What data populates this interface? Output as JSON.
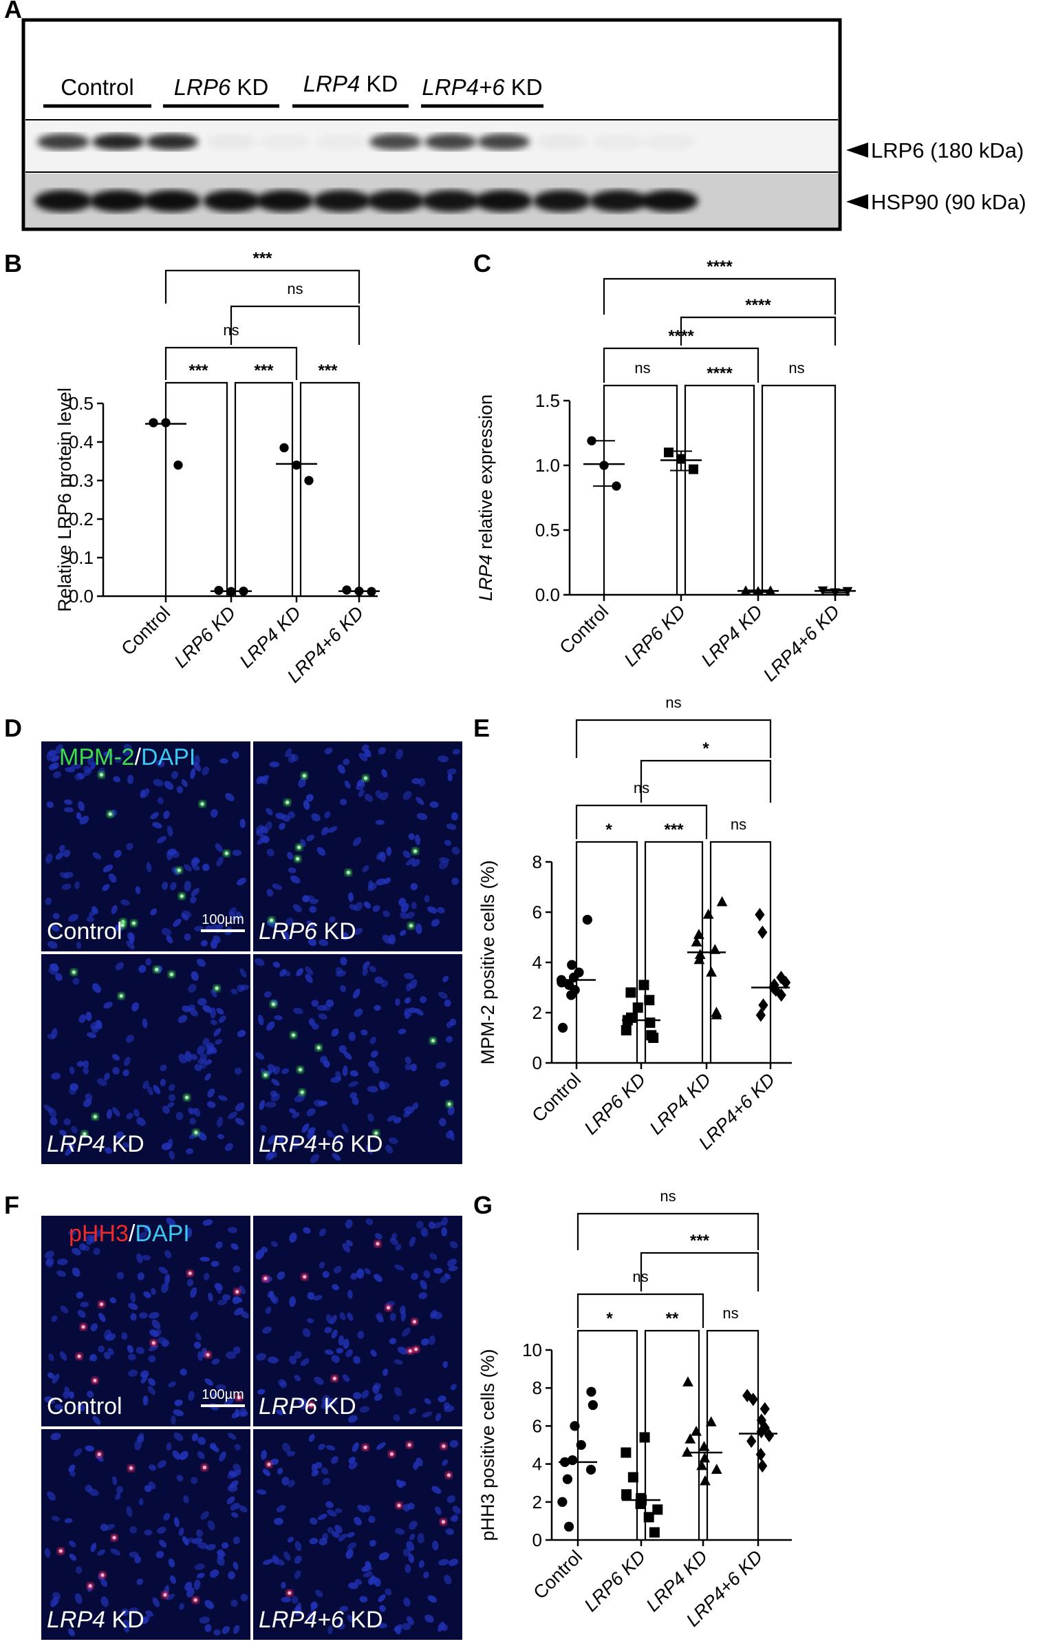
{
  "panels": {
    "A": {
      "letter": "A",
      "groups": [
        {
          "italic": "",
          "rest": "Control"
        },
        {
          "italic": "LRP6",
          "rest": " KD"
        },
        {
          "italic": "LRP4",
          "rest": " KD"
        },
        {
          "italic": "LRP4+6",
          "rest": " KD"
        }
      ],
      "band_labels": [
        "LRP6 (180 kDa)",
        "HSP90 (90 kDa)"
      ],
      "lrp6_band_intensity": [
        0.75,
        0.85,
        0.82,
        0.04,
        0.03,
        0.03,
        0.7,
        0.72,
        0.72,
        0.04,
        0.03,
        0.03
      ],
      "hsp90_band_intensity": [
        0.92,
        0.93,
        0.93,
        0.92,
        0.92,
        0.9,
        0.9,
        0.9,
        0.92,
        0.9,
        0.9,
        0.92
      ]
    },
    "B": {
      "letter": "B"
    },
    "C": {
      "letter": "C"
    },
    "D": {
      "letter": "D",
      "stain_a": "MPM-2",
      "stain_sep": "/",
      "stain_b": "DAPI",
      "scale_bar": "100µm",
      "quadrants": [
        {
          "italic": "",
          "rest": "Control"
        },
        {
          "italic": "LRP6",
          "rest": " KD"
        },
        {
          "italic": "LRP4",
          "rest": " KD"
        },
        {
          "italic": "LRP4+6",
          "rest": " KD"
        }
      ]
    },
    "E": {
      "letter": "E"
    },
    "F": {
      "letter": "F",
      "stain_a": "pHH3",
      "stain_sep": "/",
      "stain_b": "DAPI",
      "scale_bar": "100µm",
      "quadrants": [
        {
          "italic": "",
          "rest": "Control"
        },
        {
          "italic": "LRP6",
          "rest": " KD"
        },
        {
          "italic": "LRP4",
          "rest": " KD"
        },
        {
          "italic": "LRP4+6",
          "rest": " KD"
        }
      ]
    },
    "G": {
      "letter": "G"
    }
  },
  "chart_data": [
    {
      "id": "B",
      "type": "scatter",
      "ylabel": "Relative LRP6 protein level",
      "ylabel_italic_prefix": "",
      "ylim": [
        0,
        0.5
      ],
      "yticks": [
        "0.0",
        "0.1",
        "0.2",
        "0.3",
        "0.4",
        "0.5"
      ],
      "categories": [
        "Control",
        "LRP6 KD",
        "LRP4 KD",
        "LRP4+6 KD"
      ],
      "category_italic": [
        false,
        true,
        true,
        true
      ],
      "markers": [
        "circle",
        "circle",
        "circle",
        "circle"
      ],
      "points": [
        [
          0.45,
          0.45,
          0.34
        ],
        [
          0.015,
          0.012,
          0.013
        ],
        [
          0.385,
          0.34,
          0.3
        ],
        [
          0.016,
          0.013,
          0.012
        ]
      ],
      "medians": [
        0.447,
        0.013,
        0.343,
        0.013
      ],
      "error_bars": null,
      "comparisons": [
        {
          "a": 0,
          "b": 1,
          "label": "***",
          "level": 0
        },
        {
          "a": 1,
          "b": 2,
          "label": "***",
          "level": 0
        },
        {
          "a": 2,
          "b": 3,
          "label": "***",
          "level": 0
        },
        {
          "a": 0,
          "b": 2,
          "label": "ns",
          "level": 1
        },
        {
          "a": 1,
          "b": 3,
          "label": "ns",
          "level": 2
        },
        {
          "a": 0,
          "b": 3,
          "label": "***",
          "level": 3
        }
      ]
    },
    {
      "id": "C",
      "type": "scatter",
      "ylabel": " relative expression",
      "ylabel_italic_prefix": "LRP4",
      "ylim": [
        0,
        1.5
      ],
      "yticks": [
        "0.0",
        "0.5",
        "1.0",
        "1.5"
      ],
      "categories": [
        "Control",
        "LRP6 KD",
        "LRP4 KD",
        "LRP4+6 KD"
      ],
      "category_italic": [
        false,
        true,
        true,
        true
      ],
      "markers": [
        "circle",
        "square",
        "triangle",
        "tri-down"
      ],
      "points": [
        [
          1.19,
          1.0,
          0.84
        ],
        [
          1.1,
          1.05,
          0.97
        ],
        [
          0.03,
          0.025,
          0.03
        ],
        [
          0.035,
          0.02,
          0.03
        ]
      ],
      "medians": [
        1.01,
        1.04,
        0.03,
        0.03
      ],
      "error_bars": [
        [
          0.84,
          1.19
        ],
        [
          0.96,
          1.11
        ],
        [
          0.02,
          0.035
        ],
        [
          0.015,
          0.04
        ]
      ],
      "comparisons": [
        {
          "a": 0,
          "b": 1,
          "label": "ns",
          "level": 0
        },
        {
          "a": 1,
          "b": 2,
          "label": "****",
          "level": 0
        },
        {
          "a": 2,
          "b": 3,
          "label": "ns",
          "level": 0
        },
        {
          "a": 0,
          "b": 2,
          "label": "****",
          "level": 1
        },
        {
          "a": 1,
          "b": 3,
          "label": "****",
          "level": 2
        },
        {
          "a": 0,
          "b": 3,
          "label": "****",
          "level": 3
        }
      ]
    },
    {
      "id": "E",
      "type": "scatter",
      "ylabel": "MPM-2 positive cells (%)",
      "ylabel_italic_prefix": "",
      "ylim": [
        0,
        8
      ],
      "yticks": [
        "0",
        "2",
        "4",
        "6",
        "8"
      ],
      "categories": [
        "Control",
        "LRP6 KD",
        "LRP4 KD",
        "LRP4+6 KD"
      ],
      "category_italic": [
        false,
        true,
        true,
        true
      ],
      "markers": [
        "circle",
        "square",
        "triangle",
        "diamond"
      ],
      "points": [
        [
          5.7,
          3.9,
          3.6,
          3.4,
          3.3,
          3.2,
          3.1,
          2.9,
          2.7,
          1.4
        ],
        [
          3.1,
          2.8,
          2.5,
          2.2,
          1.8,
          1.7,
          1.6,
          1.3,
          1.1,
          1.0
        ],
        [
          6.4,
          5.9,
          5.1,
          4.8,
          4.5,
          4.3,
          4.1,
          3.6,
          2.0,
          1.9
        ],
        [
          5.9,
          5.2,
          3.4,
          3.2,
          3.1,
          3.0,
          2.9,
          2.7,
          2.3,
          1.9
        ]
      ],
      "medians": [
        3.3,
        1.7,
        4.4,
        3.0
      ],
      "error_bars": null,
      "comparisons": [
        {
          "a": 0,
          "b": 1,
          "label": "*",
          "level": 0
        },
        {
          "a": 1,
          "b": 2,
          "label": "***",
          "level": 0
        },
        {
          "a": 2,
          "b": 3,
          "label": "ns",
          "level": 0
        },
        {
          "a": 0,
          "b": 2,
          "label": "ns",
          "level": 1
        },
        {
          "a": 1,
          "b": 3,
          "label": "*",
          "level": 2
        },
        {
          "a": 0,
          "b": 3,
          "label": "ns",
          "level": 3
        }
      ]
    },
    {
      "id": "G",
      "type": "scatter",
      "ylabel": "pHH3 positive cells (%)",
      "ylabel_italic_prefix": "",
      "ylim": [
        0,
        10
      ],
      "yticks": [
        "0",
        "2",
        "4",
        "6",
        "8",
        "10"
      ],
      "categories": [
        "Control",
        "LRP6 KD",
        "LRP4 KD",
        "LRP4+6 KD"
      ],
      "category_italic": [
        false,
        true,
        true,
        true
      ],
      "markers": [
        "circle",
        "square",
        "triangle",
        "diamond"
      ],
      "points": [
        [
          7.8,
          7.1,
          6.0,
          5.0,
          4.2,
          4.1,
          3.7,
          3.2,
          2.0,
          0.7
        ],
        [
          5.4,
          4.6,
          3.3,
          2.4,
          2.2,
          2.1,
          1.9,
          1.6,
          1.2,
          0.4
        ],
        [
          8.3,
          6.2,
          5.7,
          5.3,
          4.9,
          4.6,
          4.3,
          3.9,
          3.7,
          3.1
        ],
        [
          7.6,
          7.4,
          6.9,
          6.3,
          5.9,
          5.7,
          5.5,
          5.2,
          4.5,
          3.9
        ]
      ],
      "medians": [
        4.1,
        2.1,
        4.6,
        5.6
      ],
      "error_bars": null,
      "comparisons": [
        {
          "a": 0,
          "b": 1,
          "label": "*",
          "level": 0
        },
        {
          "a": 1,
          "b": 2,
          "label": "**",
          "level": 0
        },
        {
          "a": 2,
          "b": 3,
          "label": "ns",
          "level": 0
        },
        {
          "a": 0,
          "b": 2,
          "label": "ns",
          "level": 1
        },
        {
          "a": 1,
          "b": 3,
          "label": "***",
          "level": 2
        },
        {
          "a": 0,
          "b": 3,
          "label": "ns",
          "level": 3
        }
      ]
    }
  ]
}
